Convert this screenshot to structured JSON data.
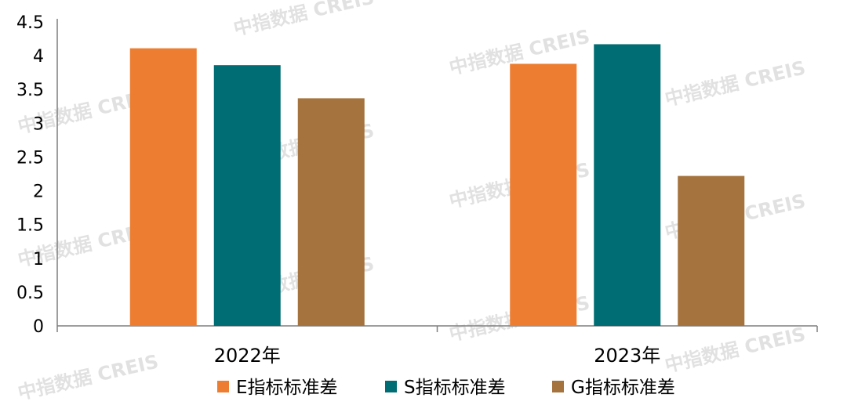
{
  "chart_data": {
    "type": "bar",
    "categories": [
      "2022年",
      "2023年"
    ],
    "series": [
      {
        "name": "E指标标准差",
        "values": [
          4.11,
          3.88
        ],
        "color": "#ED7D31"
      },
      {
        "name": "S指标标准差",
        "values": [
          3.86,
          4.17
        ],
        "color": "#006D74"
      },
      {
        "name": "G指标标准差",
        "values": [
          3.37,
          2.22
        ],
        "color": "#A5733E"
      }
    ],
    "ylim": [
      0,
      4.5
    ],
    "yticks": [
      "0",
      "0.5",
      "1",
      "1.5",
      "2",
      "2.5",
      "3",
      "3.5",
      "4",
      "4.5"
    ],
    "legend_position": "bottom",
    "grid": false
  },
  "watermark": "中指数据 CREIS"
}
